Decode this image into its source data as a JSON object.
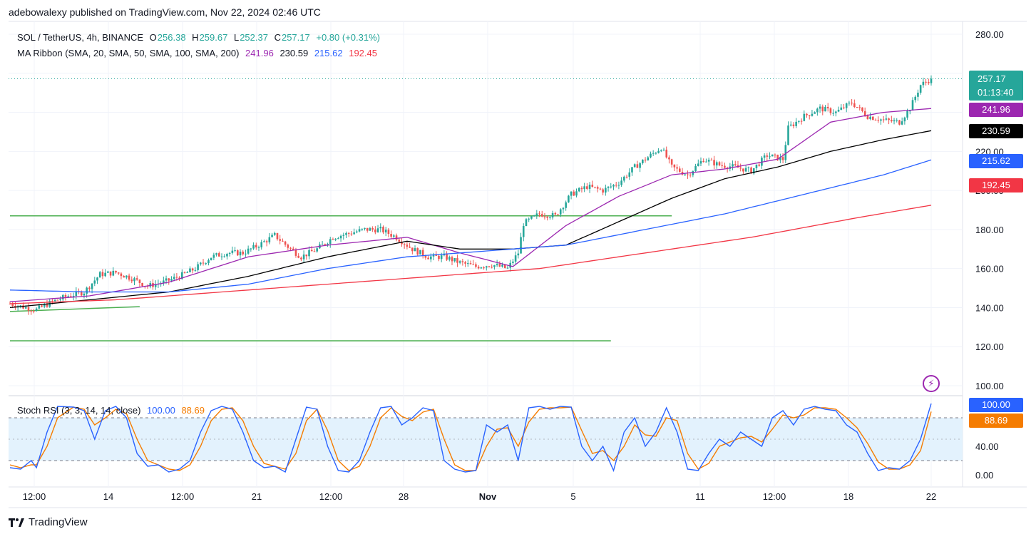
{
  "header": {
    "publisher_line": "adebowalexy published on TradingView.com, Nov 22, 2024 02:46 UTC"
  },
  "legend": {
    "symbol": "SOL / TetherUS, 4h, BINANCE",
    "open_label": "O",
    "open": "256.38",
    "high_label": "H",
    "high": "259.67",
    "low_label": "L",
    "low": "252.37",
    "close_label": "C",
    "close": "257.17",
    "change": "+0.80 (+0.31%)",
    "ribbon_label": "MA Ribbon (SMA, 20, SMA, 50, SMA, 100, SMA, 200)",
    "ma20": "241.96",
    "ma50": "230.59",
    "ma100": "215.62",
    "ma200": "192.45"
  },
  "stoch_legend": {
    "label": "Stoch RSI (3, 3, 14, 14, close)",
    "k": "100.00",
    "d": "88.69"
  },
  "price_tag": {
    "price": "257.17",
    "countdown": "01:13:40"
  },
  "footer": {
    "brand": "TradingView"
  },
  "colors": {
    "up": "#26a69a",
    "down": "#ef5350",
    "ma20": "#9c27b0",
    "ma50": "#000000",
    "ma100": "#2962ff",
    "ma200": "#f23645",
    "stoch_k": "#2962ff",
    "stoch_d": "#f57c00",
    "trendline": "#4caf50",
    "stoch_band": "#e3f2fd"
  },
  "chart_data": [
    {
      "type": "candlestick",
      "title": "SOL / TetherUS, 4h, BINANCE",
      "y_axis_ticks": [
        "100.00",
        "120.00",
        "140.00",
        "160.00",
        "180.00",
        "200.00",
        "220.00",
        "240.00",
        "260.00",
        "280.00"
      ],
      "ylim": [
        95,
        285
      ],
      "x_axis_ticks": [
        "12:00",
        "14",
        "12:00",
        "21",
        "12:00",
        "28",
        "Nov",
        "5",
        "11",
        "12:00",
        "18",
        "22"
      ],
      "last_close": 257.17,
      "close_path": [
        {
          "i": 0,
          "v": 142
        },
        {
          "i": 6,
          "v": 140
        },
        {
          "i": 10,
          "v": 139
        },
        {
          "i": 16,
          "v": 143
        },
        {
          "i": 22,
          "v": 146
        },
        {
          "i": 28,
          "v": 148
        },
        {
          "i": 34,
          "v": 157
        },
        {
          "i": 40,
          "v": 158
        },
        {
          "i": 46,
          "v": 155
        },
        {
          "i": 52,
          "v": 151
        },
        {
          "i": 58,
          "v": 153
        },
        {
          "i": 64,
          "v": 156
        },
        {
          "i": 70,
          "v": 160
        },
        {
          "i": 76,
          "v": 166
        },
        {
          "i": 82,
          "v": 168
        },
        {
          "i": 88,
          "v": 168
        },
        {
          "i": 94,
          "v": 172
        },
        {
          "i": 100,
          "v": 177
        },
        {
          "i": 106,
          "v": 170
        },
        {
          "i": 110,
          "v": 166
        },
        {
          "i": 116,
          "v": 170
        },
        {
          "i": 122,
          "v": 176
        },
        {
          "i": 128,
          "v": 178
        },
        {
          "i": 134,
          "v": 180
        },
        {
          "i": 140,
          "v": 180
        },
        {
          "i": 146,
          "v": 176
        },
        {
          "i": 152,
          "v": 170
        },
        {
          "i": 158,
          "v": 166
        },
        {
          "i": 164,
          "v": 166
        },
        {
          "i": 170,
          "v": 163
        },
        {
          "i": 176,
          "v": 161
        },
        {
          "i": 182,
          "v": 162
        },
        {
          "i": 188,
          "v": 160
        },
        {
          "i": 192,
          "v": 168
        },
        {
          "i": 194,
          "v": 183
        },
        {
          "i": 200,
          "v": 188
        },
        {
          "i": 206,
          "v": 187
        },
        {
          "i": 212,
          "v": 198
        },
        {
          "i": 218,
          "v": 202
        },
        {
          "i": 224,
          "v": 200
        },
        {
          "i": 230,
          "v": 204
        },
        {
          "i": 236,
          "v": 212
        },
        {
          "i": 242,
          "v": 218
        },
        {
          "i": 246,
          "v": 222
        },
        {
          "i": 250,
          "v": 212
        },
        {
          "i": 256,
          "v": 208
        },
        {
          "i": 262,
          "v": 216
        },
        {
          "i": 268,
          "v": 213
        },
        {
          "i": 274,
          "v": 212
        },
        {
          "i": 280,
          "v": 210
        },
        {
          "i": 286,
          "v": 218
        },
        {
          "i": 292,
          "v": 216
        },
        {
          "i": 294,
          "v": 232
        },
        {
          "i": 300,
          "v": 238
        },
        {
          "i": 306,
          "v": 242
        },
        {
          "i": 312,
          "v": 240
        },
        {
          "i": 318,
          "v": 245
        },
        {
          "i": 324,
          "v": 238
        },
        {
          "i": 330,
          "v": 236
        },
        {
          "i": 336,
          "v": 235
        },
        {
          "i": 340,
          "v": 242
        },
        {
          "i": 344,
          "v": 254
        },
        {
          "i": 348,
          "v": 257.17
        }
      ],
      "series": [
        {
          "name": "SMA 20",
          "points": [
            {
              "i": 0,
              "v": 143
            },
            {
              "i": 30,
              "v": 146
            },
            {
              "i": 60,
              "v": 153
            },
            {
              "i": 90,
              "v": 166
            },
            {
              "i": 120,
              "v": 172
            },
            {
              "i": 150,
              "v": 176
            },
            {
              "i": 170,
              "v": 168
            },
            {
              "i": 190,
              "v": 161
            },
            {
              "i": 210,
              "v": 182
            },
            {
              "i": 230,
              "v": 197
            },
            {
              "i": 250,
              "v": 208
            },
            {
              "i": 270,
              "v": 211
            },
            {
              "i": 290,
              "v": 216
            },
            {
              "i": 310,
              "v": 235
            },
            {
              "i": 330,
              "v": 240
            },
            {
              "i": 348,
              "v": 241.96
            }
          ]
        },
        {
          "name": "SMA 50",
          "points": [
            {
              "i": 0,
              "v": 140
            },
            {
              "i": 30,
              "v": 144
            },
            {
              "i": 60,
              "v": 148
            },
            {
              "i": 90,
              "v": 156
            },
            {
              "i": 120,
              "v": 166
            },
            {
              "i": 150,
              "v": 174
            },
            {
              "i": 170,
              "v": 170
            },
            {
              "i": 190,
              "v": 170
            },
            {
              "i": 210,
              "v": 172
            },
            {
              "i": 230,
              "v": 184
            },
            {
              "i": 250,
              "v": 196
            },
            {
              "i": 270,
              "v": 206
            },
            {
              "i": 290,
              "v": 212
            },
            {
              "i": 310,
              "v": 220
            },
            {
              "i": 330,
              "v": 226
            },
            {
              "i": 348,
              "v": 230.59
            }
          ]
        },
        {
          "name": "SMA 100",
          "points": [
            {
              "i": 0,
              "v": 149
            },
            {
              "i": 30,
              "v": 148
            },
            {
              "i": 60,
              "v": 148
            },
            {
              "i": 90,
              "v": 152
            },
            {
              "i": 120,
              "v": 160
            },
            {
              "i": 150,
              "v": 166
            },
            {
              "i": 180,
              "v": 169
            },
            {
              "i": 210,
              "v": 172
            },
            {
              "i": 240,
              "v": 180
            },
            {
              "i": 270,
              "v": 188
            },
            {
              "i": 300,
              "v": 198
            },
            {
              "i": 330,
              "v": 208
            },
            {
              "i": 348,
              "v": 215.62
            }
          ]
        },
        {
          "name": "SMA 200",
          "points": [
            {
              "i": 0,
              "v": 142
            },
            {
              "i": 40,
              "v": 144
            },
            {
              "i": 80,
              "v": 148
            },
            {
              "i": 120,
              "v": 152
            },
            {
              "i": 160,
              "v": 156
            },
            {
              "i": 200,
              "v": 160
            },
            {
              "i": 240,
              "v": 168
            },
            {
              "i": 280,
              "v": 176
            },
            {
              "i": 320,
              "v": 186
            },
            {
              "i": 348,
              "v": 192.45
            }
          ]
        }
      ],
      "horizontal_lines": [
        {
          "from_i": 0,
          "to_i": 250,
          "v": 187
        },
        {
          "from_i": 0,
          "to_i": 227,
          "v": 123
        }
      ],
      "trend_lines": [
        {
          "from_i": 0,
          "from_v": 138,
          "to_i": 49,
          "to_v": 140.5
        }
      ],
      "n_bars": 349
    },
    {
      "type": "line",
      "title": "Stoch RSI (3, 3, 14, 14, close)",
      "y_axis_ticks": [
        "0.00",
        "40.00"
      ],
      "ylim": [
        -5,
        105
      ],
      "bands": [
        20,
        80
      ],
      "k_points": [
        [
          0,
          10
        ],
        [
          4,
          8
        ],
        [
          8,
          20
        ],
        [
          10,
          10
        ],
        [
          14,
          60
        ],
        [
          18,
          96
        ],
        [
          24,
          95
        ],
        [
          28,
          90
        ],
        [
          32,
          50
        ],
        [
          36,
          90
        ],
        [
          40,
          96
        ],
        [
          44,
          80
        ],
        [
          48,
          30
        ],
        [
          52,
          12
        ],
        [
          56,
          14
        ],
        [
          60,
          4
        ],
        [
          64,
          8
        ],
        [
          68,
          20
        ],
        [
          72,
          60
        ],
        [
          76,
          90
        ],
        [
          80,
          96
        ],
        [
          84,
          92
        ],
        [
          88,
          60
        ],
        [
          92,
          20
        ],
        [
          96,
          10
        ],
        [
          100,
          12
        ],
        [
          104,
          4
        ],
        [
          108,
          50
        ],
        [
          112,
          95
        ],
        [
          116,
          92
        ],
        [
          120,
          40
        ],
        [
          124,
          6
        ],
        [
          128,
          4
        ],
        [
          132,
          20
        ],
        [
          136,
          60
        ],
        [
          140,
          94
        ],
        [
          144,
          96
        ],
        [
          148,
          70
        ],
        [
          152,
          80
        ],
        [
          156,
          94
        ],
        [
          160,
          90
        ],
        [
          164,
          20
        ],
        [
          168,
          8
        ],
        [
          172,
          4
        ],
        [
          176,
          6
        ],
        [
          180,
          70
        ],
        [
          184,
          60
        ],
        [
          188,
          70
        ],
        [
          192,
          20
        ],
        [
          196,
          94
        ],
        [
          200,
          96
        ],
        [
          204,
          92
        ],
        [
          208,
          96
        ],
        [
          212,
          95
        ],
        [
          216,
          40
        ],
        [
          220,
          20
        ],
        [
          224,
          40
        ],
        [
          228,
          6
        ],
        [
          232,
          60
        ],
        [
          236,
          80
        ],
        [
          240,
          40
        ],
        [
          244,
          60
        ],
        [
          248,
          94
        ],
        [
          252,
          60
        ],
        [
          256,
          8
        ],
        [
          260,
          6
        ],
        [
          264,
          30
        ],
        [
          268,
          50
        ],
        [
          272,
          40
        ],
        [
          276,
          60
        ],
        [
          280,
          50
        ],
        [
          284,
          40
        ],
        [
          288,
          80
        ],
        [
          292,
          90
        ],
        [
          296,
          70
        ],
        [
          300,
          92
        ],
        [
          304,
          96
        ],
        [
          308,
          92
        ],
        [
          312,
          90
        ],
        [
          316,
          70
        ],
        [
          320,
          60
        ],
        [
          324,
          30
        ],
        [
          328,
          6
        ],
        [
          332,
          10
        ],
        [
          336,
          8
        ],
        [
          340,
          20
        ],
        [
          344,
          50
        ],
        [
          348,
          100
        ]
      ],
      "d_points": [
        [
          0,
          14
        ],
        [
          4,
          10
        ],
        [
          8,
          14
        ],
        [
          10,
          14
        ],
        [
          14,
          40
        ],
        [
          18,
          80
        ],
        [
          24,
          95
        ],
        [
          28,
          92
        ],
        [
          32,
          70
        ],
        [
          36,
          80
        ],
        [
          40,
          92
        ],
        [
          44,
          86
        ],
        [
          48,
          50
        ],
        [
          52,
          20
        ],
        [
          56,
          14
        ],
        [
          60,
          8
        ],
        [
          64,
          6
        ],
        [
          68,
          14
        ],
        [
          72,
          40
        ],
        [
          76,
          76
        ],
        [
          80,
          92
        ],
        [
          84,
          94
        ],
        [
          88,
          76
        ],
        [
          92,
          40
        ],
        [
          96,
          16
        ],
        [
          100,
          12
        ],
        [
          104,
          8
        ],
        [
          108,
          30
        ],
        [
          112,
          76
        ],
        [
          116,
          92
        ],
        [
          120,
          62
        ],
        [
          124,
          20
        ],
        [
          128,
          6
        ],
        [
          132,
          12
        ],
        [
          136,
          40
        ],
        [
          140,
          80
        ],
        [
          144,
          94
        ],
        [
          148,
          82
        ],
        [
          152,
          76
        ],
        [
          156,
          88
        ],
        [
          160,
          92
        ],
        [
          164,
          50
        ],
        [
          168,
          14
        ],
        [
          172,
          6
        ],
        [
          176,
          6
        ],
        [
          180,
          40
        ],
        [
          184,
          64
        ],
        [
          188,
          66
        ],
        [
          192,
          40
        ],
        [
          196,
          74
        ],
        [
          200,
          92
        ],
        [
          204,
          94
        ],
        [
          208,
          94
        ],
        [
          212,
          95
        ],
        [
          216,
          62
        ],
        [
          220,
          30
        ],
        [
          224,
          34
        ],
        [
          228,
          20
        ],
        [
          232,
          40
        ],
        [
          236,
          70
        ],
        [
          240,
          56
        ],
        [
          244,
          54
        ],
        [
          248,
          80
        ],
        [
          252,
          76
        ],
        [
          256,
          30
        ],
        [
          260,
          8
        ],
        [
          264,
          16
        ],
        [
          268,
          40
        ],
        [
          272,
          46
        ],
        [
          276,
          52
        ],
        [
          280,
          54
        ],
        [
          284,
          46
        ],
        [
          288,
          64
        ],
        [
          292,
          84
        ],
        [
          296,
          80
        ],
        [
          300,
          84
        ],
        [
          304,
          94
        ],
        [
          308,
          94
        ],
        [
          312,
          92
        ],
        [
          316,
          80
        ],
        [
          320,
          66
        ],
        [
          324,
          44
        ],
        [
          328,
          18
        ],
        [
          332,
          8
        ],
        [
          336,
          8
        ],
        [
          340,
          14
        ],
        [
          344,
          34
        ],
        [
          348,
          88.69
        ]
      ]
    }
  ]
}
